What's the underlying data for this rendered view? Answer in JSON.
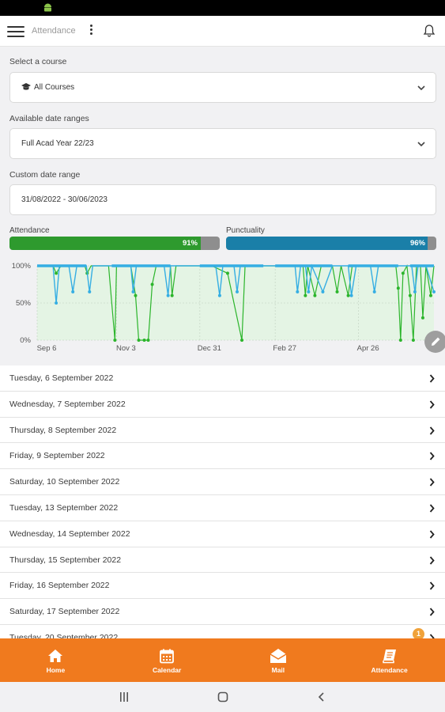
{
  "app_bar": {
    "title": "Attendance"
  },
  "course": {
    "label": "Select a course",
    "value": "All Courses"
  },
  "date_range": {
    "label": "Available date ranges",
    "value": "Full Acad Year 22/23"
  },
  "custom_range": {
    "label": "Custom date range",
    "value": "31/08/2022 - 30/06/2023"
  },
  "meters": {
    "attendance": {
      "label": "Attendance",
      "value_text": "91%",
      "percent": 91,
      "color": "#2e9a2e"
    },
    "punctuality": {
      "label": "Punctuality",
      "value_text": "96%",
      "percent": 96,
      "color": "#1a7fa8"
    }
  },
  "chart_data": {
    "type": "line",
    "y_ticks": [
      "100%",
      "50%",
      "0%"
    ],
    "x_ticks": [
      "Sep 6",
      "Nov 3",
      "Dec 31",
      "Feb 27",
      "Apr 26"
    ],
    "ylim": [
      0,
      100
    ],
    "series": [
      {
        "color": "#2bb52b",
        "points": [
          [
            0,
            100
          ],
          [
            20,
            100
          ],
          [
            24,
            90
          ],
          [
            30,
            100
          ],
          [
            60,
            100
          ],
          [
            63,
            90
          ],
          [
            68,
            100
          ],
          [
            88,
            100
          ],
          [
            90,
            100
          ],
          [
            98,
            0
          ],
          [
            100,
            100
          ],
          [
            118,
            100
          ],
          [
            124,
            60
          ],
          [
            128,
            0
          ],
          [
            135,
            0
          ],
          [
            140,
            0
          ],
          [
            145,
            75
          ],
          [
            150,
            100
          ],
          [
            168,
            100
          ],
          [
            170,
            60
          ],
          [
            175,
            100
          ],
          [
            205,
            100
          ],
          [
            212,
            100
          ],
          [
            220,
            100
          ],
          [
            240,
            90
          ],
          [
            258,
            0
          ],
          [
            262,
            100
          ],
          [
            285,
            100
          ],
          [
            300,
            100
          ],
          [
            335,
            100
          ],
          [
            338,
            60
          ],
          [
            341,
            100
          ],
          [
            350,
            60
          ],
          [
            358,
            100
          ],
          [
            372,
            100
          ],
          [
            378,
            65
          ],
          [
            383,
            100
          ],
          [
            392,
            60
          ],
          [
            397,
            100
          ],
          [
            410,
            100
          ],
          [
            418,
            100
          ],
          [
            430,
            100
          ],
          [
            452,
            100
          ],
          [
            455,
            70
          ],
          [
            458,
            0
          ],
          [
            461,
            90
          ],
          [
            466,
            100
          ],
          [
            470,
            60
          ],
          [
            474,
            0
          ],
          [
            478,
            100
          ],
          [
            483,
            100
          ],
          [
            486,
            30
          ],
          [
            490,
            100
          ],
          [
            496,
            60
          ],
          [
            500,
            100
          ]
        ]
      },
      {
        "color": "#35aee3",
        "points": [
          [
            0,
            100
          ],
          [
            20,
            100
          ],
          [
            24,
            50
          ],
          [
            28,
            100
          ],
          [
            40,
            100
          ],
          [
            45,
            65
          ],
          [
            50,
            100
          ],
          [
            62,
            100
          ],
          [
            66,
            65
          ],
          [
            70,
            100
          ],
          [
            88,
            100
          ],
          [
            90,
            100
          ],
          [
            118,
            100
          ],
          [
            121,
            65
          ],
          [
            125,
            100
          ],
          [
            160,
            100
          ],
          [
            165,
            60
          ],
          [
            168,
            100
          ],
          [
            195,
            100
          ],
          [
            205,
            100
          ],
          [
            212,
            100
          ],
          [
            225,
            100
          ],
          [
            230,
            60
          ],
          [
            234,
            100
          ],
          [
            248,
            100
          ],
          [
            252,
            65
          ],
          [
            256,
            100
          ],
          [
            285,
            100
          ],
          [
            300,
            100
          ],
          [
            325,
            100
          ],
          [
            328,
            65
          ],
          [
            332,
            100
          ],
          [
            338,
            100
          ],
          [
            342,
            65
          ],
          [
            346,
            100
          ],
          [
            360,
            65
          ],
          [
            372,
            100
          ],
          [
            392,
            100
          ],
          [
            396,
            60
          ],
          [
            402,
            100
          ],
          [
            420,
            100
          ],
          [
            425,
            65
          ],
          [
            430,
            100
          ],
          [
            455,
            100
          ],
          [
            458,
            100
          ],
          [
            472,
            100
          ],
          [
            476,
            65
          ],
          [
            480,
            100
          ],
          [
            490,
            100
          ],
          [
            500,
            65
          ]
        ]
      }
    ],
    "x_range": [
      0,
      500
    ]
  },
  "list": [
    {
      "date": "Tuesday, 6 September 2022"
    },
    {
      "date": "Wednesday, 7 September 2022"
    },
    {
      "date": "Thursday, 8 September 2022"
    },
    {
      "date": "Friday, 9 September 2022"
    },
    {
      "date": "Saturday, 10 September 2022"
    },
    {
      "date": "Tuesday, 13 September 2022"
    },
    {
      "date": "Wednesday, 14 September 2022"
    },
    {
      "date": "Thursday, 15 September 2022"
    },
    {
      "date": "Friday, 16 September 2022"
    },
    {
      "date": "Saturday, 17 September 2022"
    },
    {
      "date": "Tuesday, 20 September 2022",
      "badge": "1"
    }
  ],
  "bottom_nav": [
    {
      "label": "Home",
      "icon": "home-icon"
    },
    {
      "label": "Calendar",
      "icon": "calendar-icon"
    },
    {
      "label": "Mail",
      "icon": "mail-icon"
    },
    {
      "label": "Attendance",
      "icon": "attendance-icon"
    }
  ]
}
